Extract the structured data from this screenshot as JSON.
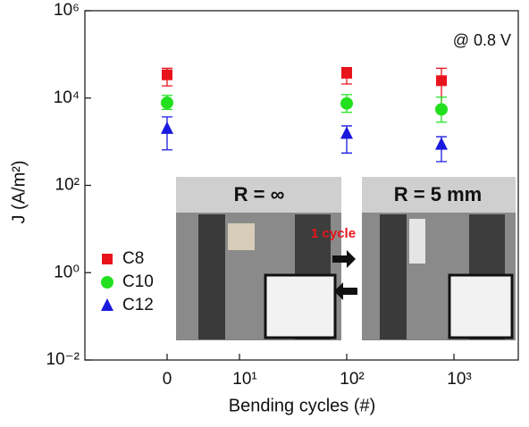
{
  "chart_data": {
    "type": "scatter",
    "xlabel": "Bending cycles (#)",
    "ylabel": "J (A/m²)",
    "annotations": [
      "@ 0.8 V",
      "R = ∞",
      "R = 5 mm",
      "1 cycle"
    ],
    "categories": [
      "0",
      "10¹",
      "10²",
      "10³"
    ],
    "yscale": "log",
    "ylim": [
      0.01,
      1000000
    ],
    "yticks": [
      {
        "value": 0.01,
        "label": "10⁻²"
      },
      {
        "value": 1,
        "label": "10⁰"
      },
      {
        "value": 100,
        "label": "10²"
      },
      {
        "value": 10000,
        "label": "10⁴"
      },
      {
        "value": 1000000,
        "label": "10⁶"
      }
    ],
    "legend": "lower left",
    "series": [
      {
        "name": "C8",
        "color": "#e8141c",
        "marker": "square",
        "values": [
          34000,
          null,
          37000,
          25000
        ],
        "err_low": [
          19000,
          null,
          21000,
          6000
        ],
        "err_high": [
          48000,
          null,
          50000,
          48000
        ]
      },
      {
        "name": "C10",
        "color": "#22e01e",
        "marker": "circle",
        "values": [
          7800,
          null,
          7500,
          5500
        ],
        "err_low": [
          5500,
          null,
          4700,
          2800
        ],
        "err_high": [
          11500,
          null,
          12000,
          10500
        ]
      },
      {
        "name": "C12",
        "color": "#1a1adf",
        "marker": "triangle",
        "values": [
          2000,
          null,
          1550,
          870
        ],
        "err_low": [
          650,
          null,
          550,
          350
        ],
        "err_high": [
          3700,
          null,
          2300,
          1300
        ]
      }
    ]
  }
}
